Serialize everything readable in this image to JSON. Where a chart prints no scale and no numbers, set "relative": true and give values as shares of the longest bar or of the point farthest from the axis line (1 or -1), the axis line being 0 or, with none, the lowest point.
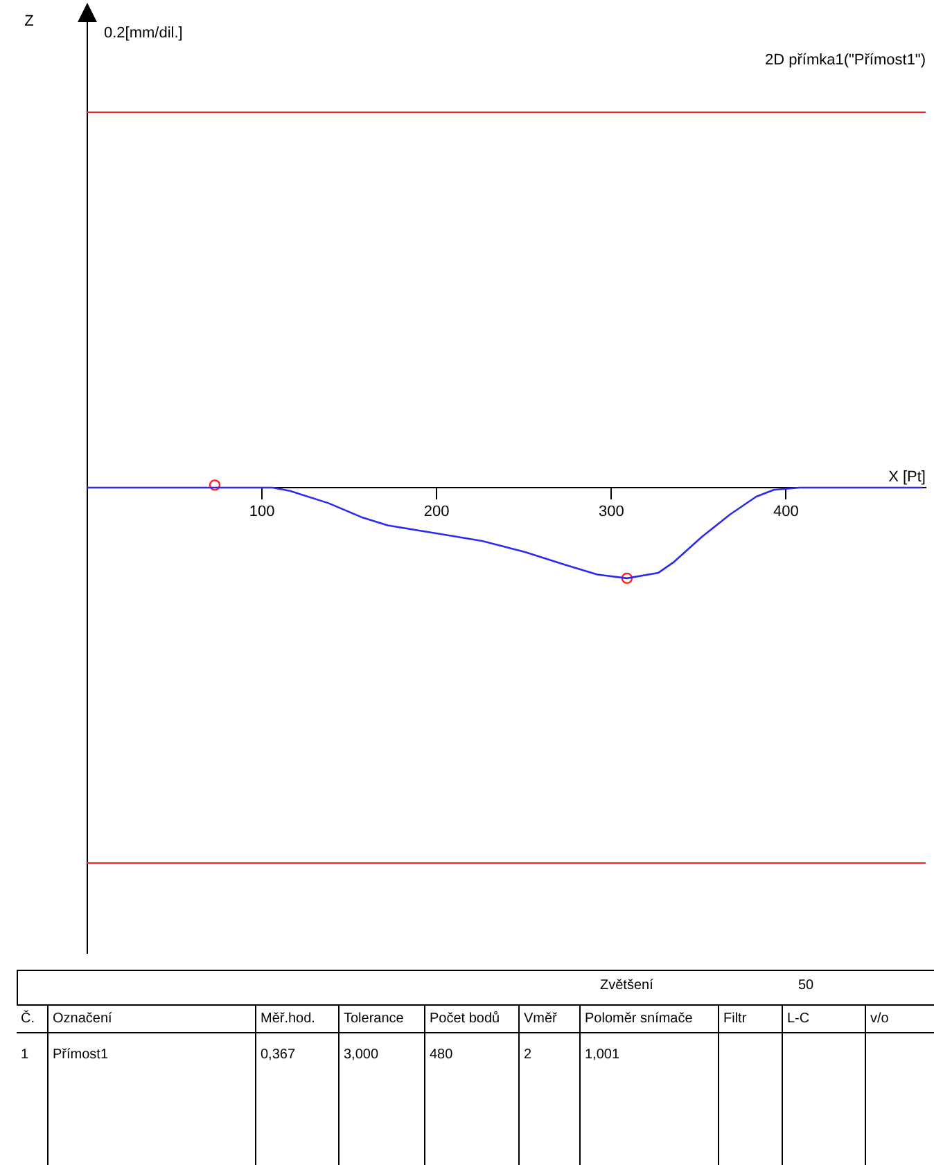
{
  "chart_data": {
    "type": "line",
    "title": "2D přímka1(\"Přímost1\")",
    "xlabel": "X [Pt]",
    "xlim": [
      0,
      480
    ],
    "xticks": [
      100,
      200,
      300,
      400
    ],
    "relative": true,
    "grid": false,
    "legend": false,
    "series": [
      {
        "color": "#2b2bf0",
        "marker": "none",
        "x": [
          0,
          106,
          116,
          138,
          157,
          172,
          201,
          226,
          251,
          273,
          292,
          309,
          327,
          336,
          352,
          368,
          383,
          393,
          408,
          478
        ],
        "values": [
          0,
          0,
          -0.036,
          -0.171,
          -0.326,
          -0.417,
          -0.508,
          -0.588,
          -0.713,
          -0.848,
          -0.959,
          -1,
          -0.939,
          -0.818,
          -0.541,
          -0.296,
          -0.099,
          -0.025,
          0,
          0
        ]
      },
      {
        "type": "scatter",
        "color": "#ff2020",
        "marker": "circle",
        "x": [
          73,
          309
        ],
        "values": [
          0.028,
          -1
        ]
      }
    ],
    "ref_lines": [
      {
        "axis": "y",
        "value": 4.14,
        "color": "#ff2020"
      },
      {
        "axis": "y",
        "value": -4.14,
        "color": "#ff2020"
      }
    ],
    "annotations": [
      "Z",
      "0.2[mm/dil.]",
      "Zvětšení",
      "50",
      "Č.",
      "Označení",
      "Měř.hod.",
      "Tolerance",
      "Počet bodů",
      "Vměř",
      "Poloměr snímače",
      "Filtr",
      "L-C",
      "v/o",
      "1",
      "Přímost1",
      "0,367",
      "3,000",
      "480",
      "2",
      "1,001"
    ]
  }
}
